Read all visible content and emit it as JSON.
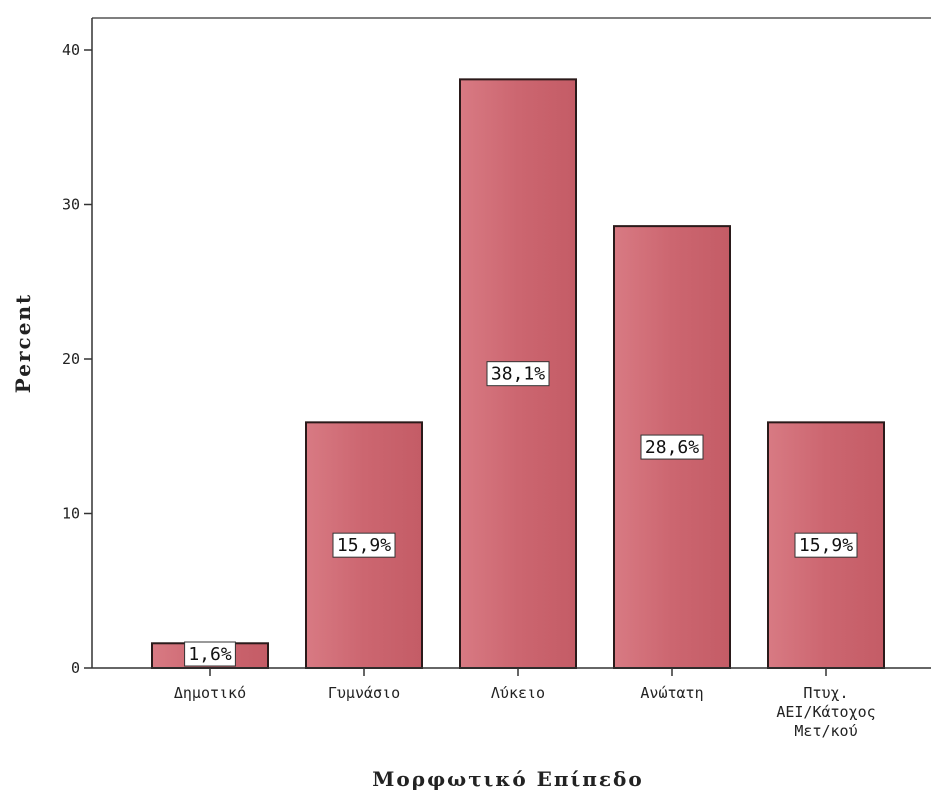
{
  "chart_data": {
    "type": "bar",
    "categories": [
      "Δημοτικό",
      "Γυμνάσιο",
      "Λύκειο",
      "Ανώτατη",
      "Πτυχ. ΑΕΙ/Κάτοχος Μετ/κού"
    ],
    "category_lines": [
      [
        "Δημοτικό"
      ],
      [
        "Γυμνάσιο"
      ],
      [
        "Λύκειο"
      ],
      [
        "Ανώτατη"
      ],
      [
        "Πτυχ.",
        "ΑΕΙ/Κάτοχος",
        "Μετ/κού"
      ]
    ],
    "values": [
      1.6,
      15.9,
      38.1,
      28.6,
      15.9
    ],
    "data_labels": [
      "1,6%",
      "15,9%",
      "38,1%",
      "28,6%",
      "15,9%"
    ],
    "xlabel": "Μορφωτικό Επίπεδο",
    "ylabel": "Percent",
    "ylim": [
      0,
      42
    ],
    "yticks": [
      0,
      10,
      20,
      30,
      40
    ],
    "ytick_labels": [
      "0",
      "10",
      "20",
      "30",
      "40"
    ],
    "bar_color": "#cc6670",
    "bar_edge_color": "#2a1a1a",
    "grid": false,
    "legend": "none"
  }
}
